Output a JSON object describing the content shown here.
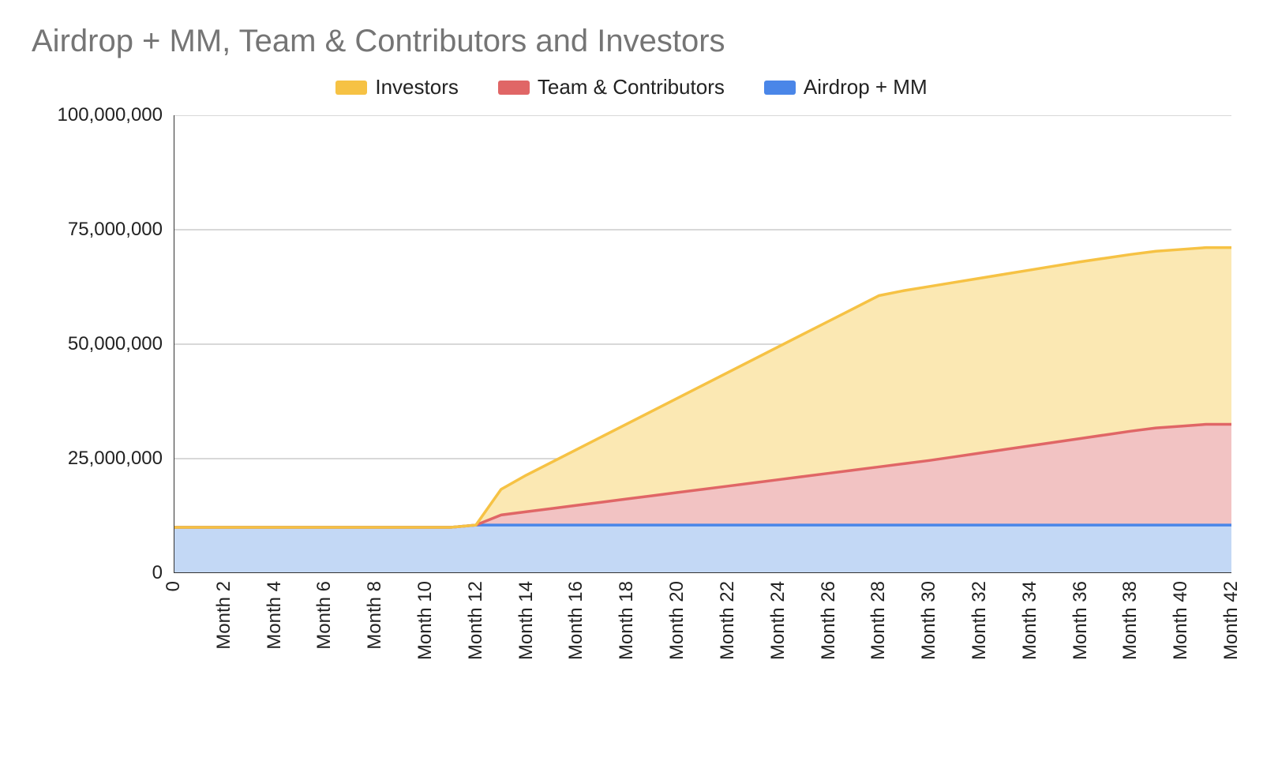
{
  "chart": {
    "type": "stacked-area",
    "title": "Airdrop + MM, Team & Contributors and Investors",
    "title_fontsize": 40,
    "title_color": "#757575",
    "background_color": "#ffffff",
    "grid_color": "#cccccc",
    "axis_line_color": "#333333",
    "label_color": "#222222",
    "label_fontsize": 24,
    "legend_fontsize": 26,
    "y": {
      "min": 0,
      "max": 100000000,
      "ticks": [
        0,
        25000000,
        50000000,
        75000000,
        100000000
      ],
      "tick_labels": [
        "0",
        "25,000,000",
        "50,000,000",
        "75,000,000",
        "100,000,000"
      ]
    },
    "x": {
      "categories": [
        "0",
        "Month 2",
        "Month 4",
        "Month 6",
        "Month 8",
        "Month 10",
        "Month 12",
        "Month 14",
        "Month 16",
        "Month 18",
        "Month 20",
        "Month 22",
        "Month 24",
        "Month 26",
        "Month 28",
        "Month 30",
        "Month 32",
        "Month 34",
        "Month 36",
        "Month 38",
        "Month 40",
        "Month 42"
      ],
      "points": [
        0,
        1,
        2,
        3,
        4,
        5,
        6,
        7,
        8,
        9,
        10,
        11,
        12,
        13,
        14,
        15,
        16,
        17,
        18,
        19,
        20,
        21,
        22,
        23,
        24,
        25,
        26,
        27,
        28,
        29,
        30,
        31,
        32,
        33,
        34,
        35,
        36,
        37,
        38,
        39,
        40,
        41,
        42
      ],
      "label_rotation": -90
    },
    "legend": [
      {
        "label": "Investors",
        "swatch": "#f6c244"
      },
      {
        "label": "Team & Contributors",
        "swatch": "#e06666"
      },
      {
        "label": "Airdrop + MM",
        "swatch": "#4a86e8"
      }
    ],
    "series": [
      {
        "name": "Airdrop + MM",
        "stroke": "#4a86e8",
        "fill": "#c3d8f5",
        "fill_opacity": 1.0,
        "stroke_width": 3.5,
        "values": [
          10000000,
          10000000,
          10000000,
          10000000,
          10000000,
          10000000,
          10000000,
          10000000,
          10000000,
          10000000,
          10000000,
          10000000,
          10500000,
          10500000,
          10500000,
          10500000,
          10500000,
          10500000,
          10500000,
          10500000,
          10500000,
          10500000,
          10500000,
          10500000,
          10500000,
          10500000,
          10500000,
          10500000,
          10500000,
          10500000,
          10500000,
          10500000,
          10500000,
          10500000,
          10500000,
          10500000,
          10500000,
          10500000,
          10500000,
          10500000,
          10500000,
          10500000,
          10500000
        ]
      },
      {
        "name": "Team & Contributors",
        "stroke": "#e06666",
        "fill": "#f2c3c3",
        "fill_opacity": 1.0,
        "stroke_width": 3.5,
        "values": [
          0,
          0,
          0,
          0,
          0,
          0,
          0,
          0,
          0,
          0,
          0,
          0,
          0,
          2200000,
          2900000,
          3600000,
          4300000,
          5000000,
          5700000,
          6400000,
          7100000,
          7800000,
          8500000,
          9200000,
          9900000,
          10600000,
          11300000,
          12000000,
          12700000,
          13400000,
          14100000,
          14900000,
          15700000,
          16500000,
          17300000,
          18100000,
          18900000,
          19700000,
          20500000,
          21200000,
          21600000,
          22000000,
          22000000
        ]
      },
      {
        "name": "Investors",
        "stroke": "#f6c244",
        "fill": "#fbe8b3",
        "fill_opacity": 1.0,
        "stroke_width": 3.5,
        "values": [
          0,
          0,
          0,
          0,
          0,
          0,
          0,
          0,
          0,
          0,
          0,
          0,
          0,
          5600000,
          8000000,
          10100000,
          12200000,
          14300000,
          16400000,
          18500000,
          20600000,
          22700000,
          24800000,
          26900000,
          29000000,
          31100000,
          33200000,
          35300000,
          37400000,
          37800000,
          38000000,
          38100000,
          38200000,
          38300000,
          38400000,
          38500000,
          38600000,
          38600000,
          38600000,
          38600000,
          38600000,
          38600000,
          38600000
        ]
      }
    ]
  }
}
